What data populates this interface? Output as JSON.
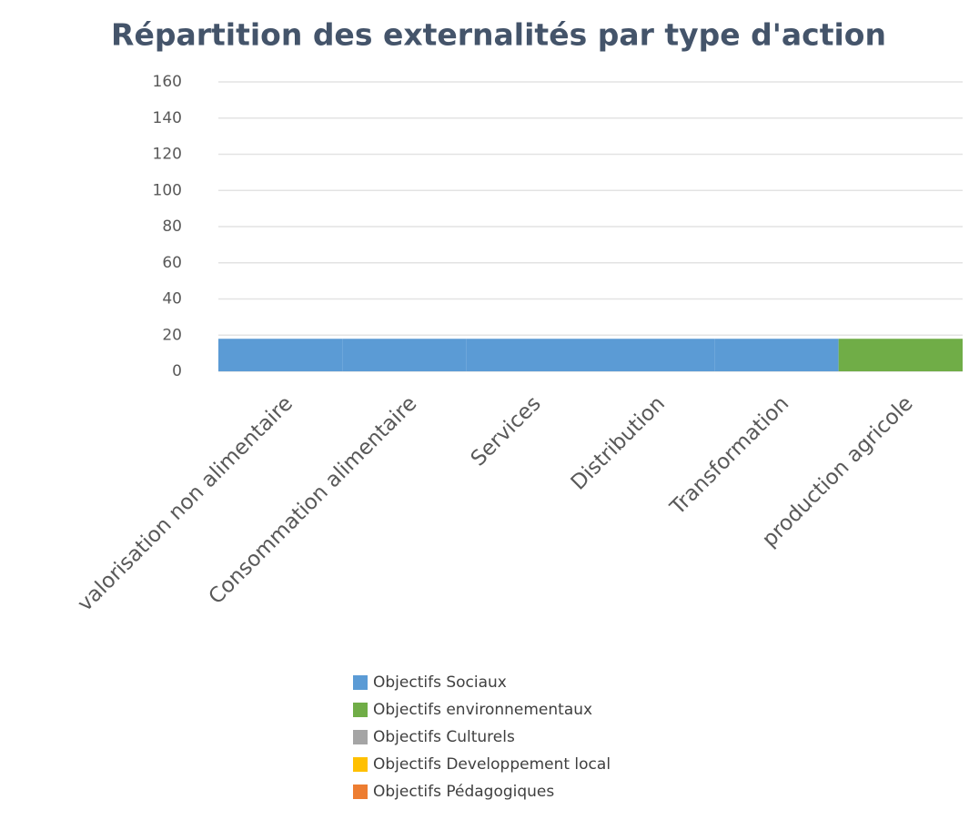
{
  "chart_data": {
    "type": "stacked_bar",
    "title": "Répartition des externalités par type d'action",
    "categories": [
      "valorisation non alimentaire",
      "Consommation alimentaire",
      "Services",
      "Distribution",
      "Transformation",
      "production agricole"
    ],
    "series": [
      {
        "name": "Objectifs Sociaux",
        "color": "#5b9bd5",
        "values": [
          18,
          18,
          18,
          18,
          18,
          0
        ]
      },
      {
        "name": "Objectifs environnementaux",
        "color": "#70ad47",
        "values": [
          0,
          0,
          0,
          0,
          0,
          18
        ]
      },
      {
        "name": "Objectifs Culturels",
        "color": "#a5a5a5",
        "values": [
          0,
          0,
          0,
          0,
          0,
          0
        ]
      },
      {
        "name": "Objectifs Developpement local",
        "color": "#ffc000",
        "values": [
          0,
          0,
          0,
          0,
          0,
          0
        ]
      },
      {
        "name": "Objectifs Pédagogiques",
        "color": "#ed7d31",
        "values": [
          0,
          0,
          0,
          0,
          0,
          0
        ]
      }
    ],
    "ylim": [
      0,
      160
    ],
    "yticks": [
      0,
      20,
      40,
      60,
      80,
      100,
      120,
      140,
      160
    ],
    "grid": true,
    "legend": "bottom"
  }
}
